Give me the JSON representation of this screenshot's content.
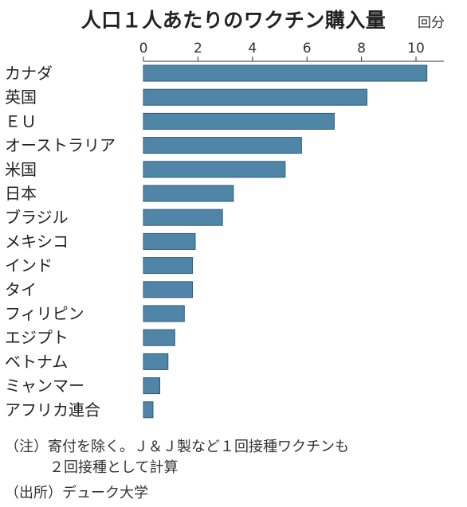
{
  "chart_data": {
    "type": "bar",
    "orientation": "horizontal",
    "title": "人口１人あたりのワクチン購入量",
    "unit": "回分",
    "xlim": [
      0,
      11
    ],
    "ticks": [
      0,
      2,
      4,
      6,
      8,
      10
    ],
    "categories": [
      "カナダ",
      "英国",
      "ＥＵ",
      "オーストラリア",
      "米国",
      "日本",
      "ブラジル",
      "メキシコ",
      "インド",
      "タイ",
      "フィリピン",
      "エジプト",
      "ベトナム",
      "ミャンマー",
      "アフリカ連合"
    ],
    "values": [
      10.4,
      8.2,
      7.0,
      5.8,
      5.2,
      3.3,
      2.9,
      1.9,
      1.8,
      1.8,
      1.5,
      1.15,
      0.9,
      0.6,
      0.35
    ],
    "bar_color": "#4f86a8"
  },
  "notes": {
    "note1": "（注）寄付を除く。Ｊ＆Ｊ製など１回接種ワクチンも",
    "note2": "２回接種として計算",
    "source": "（出所）デューク大学"
  }
}
